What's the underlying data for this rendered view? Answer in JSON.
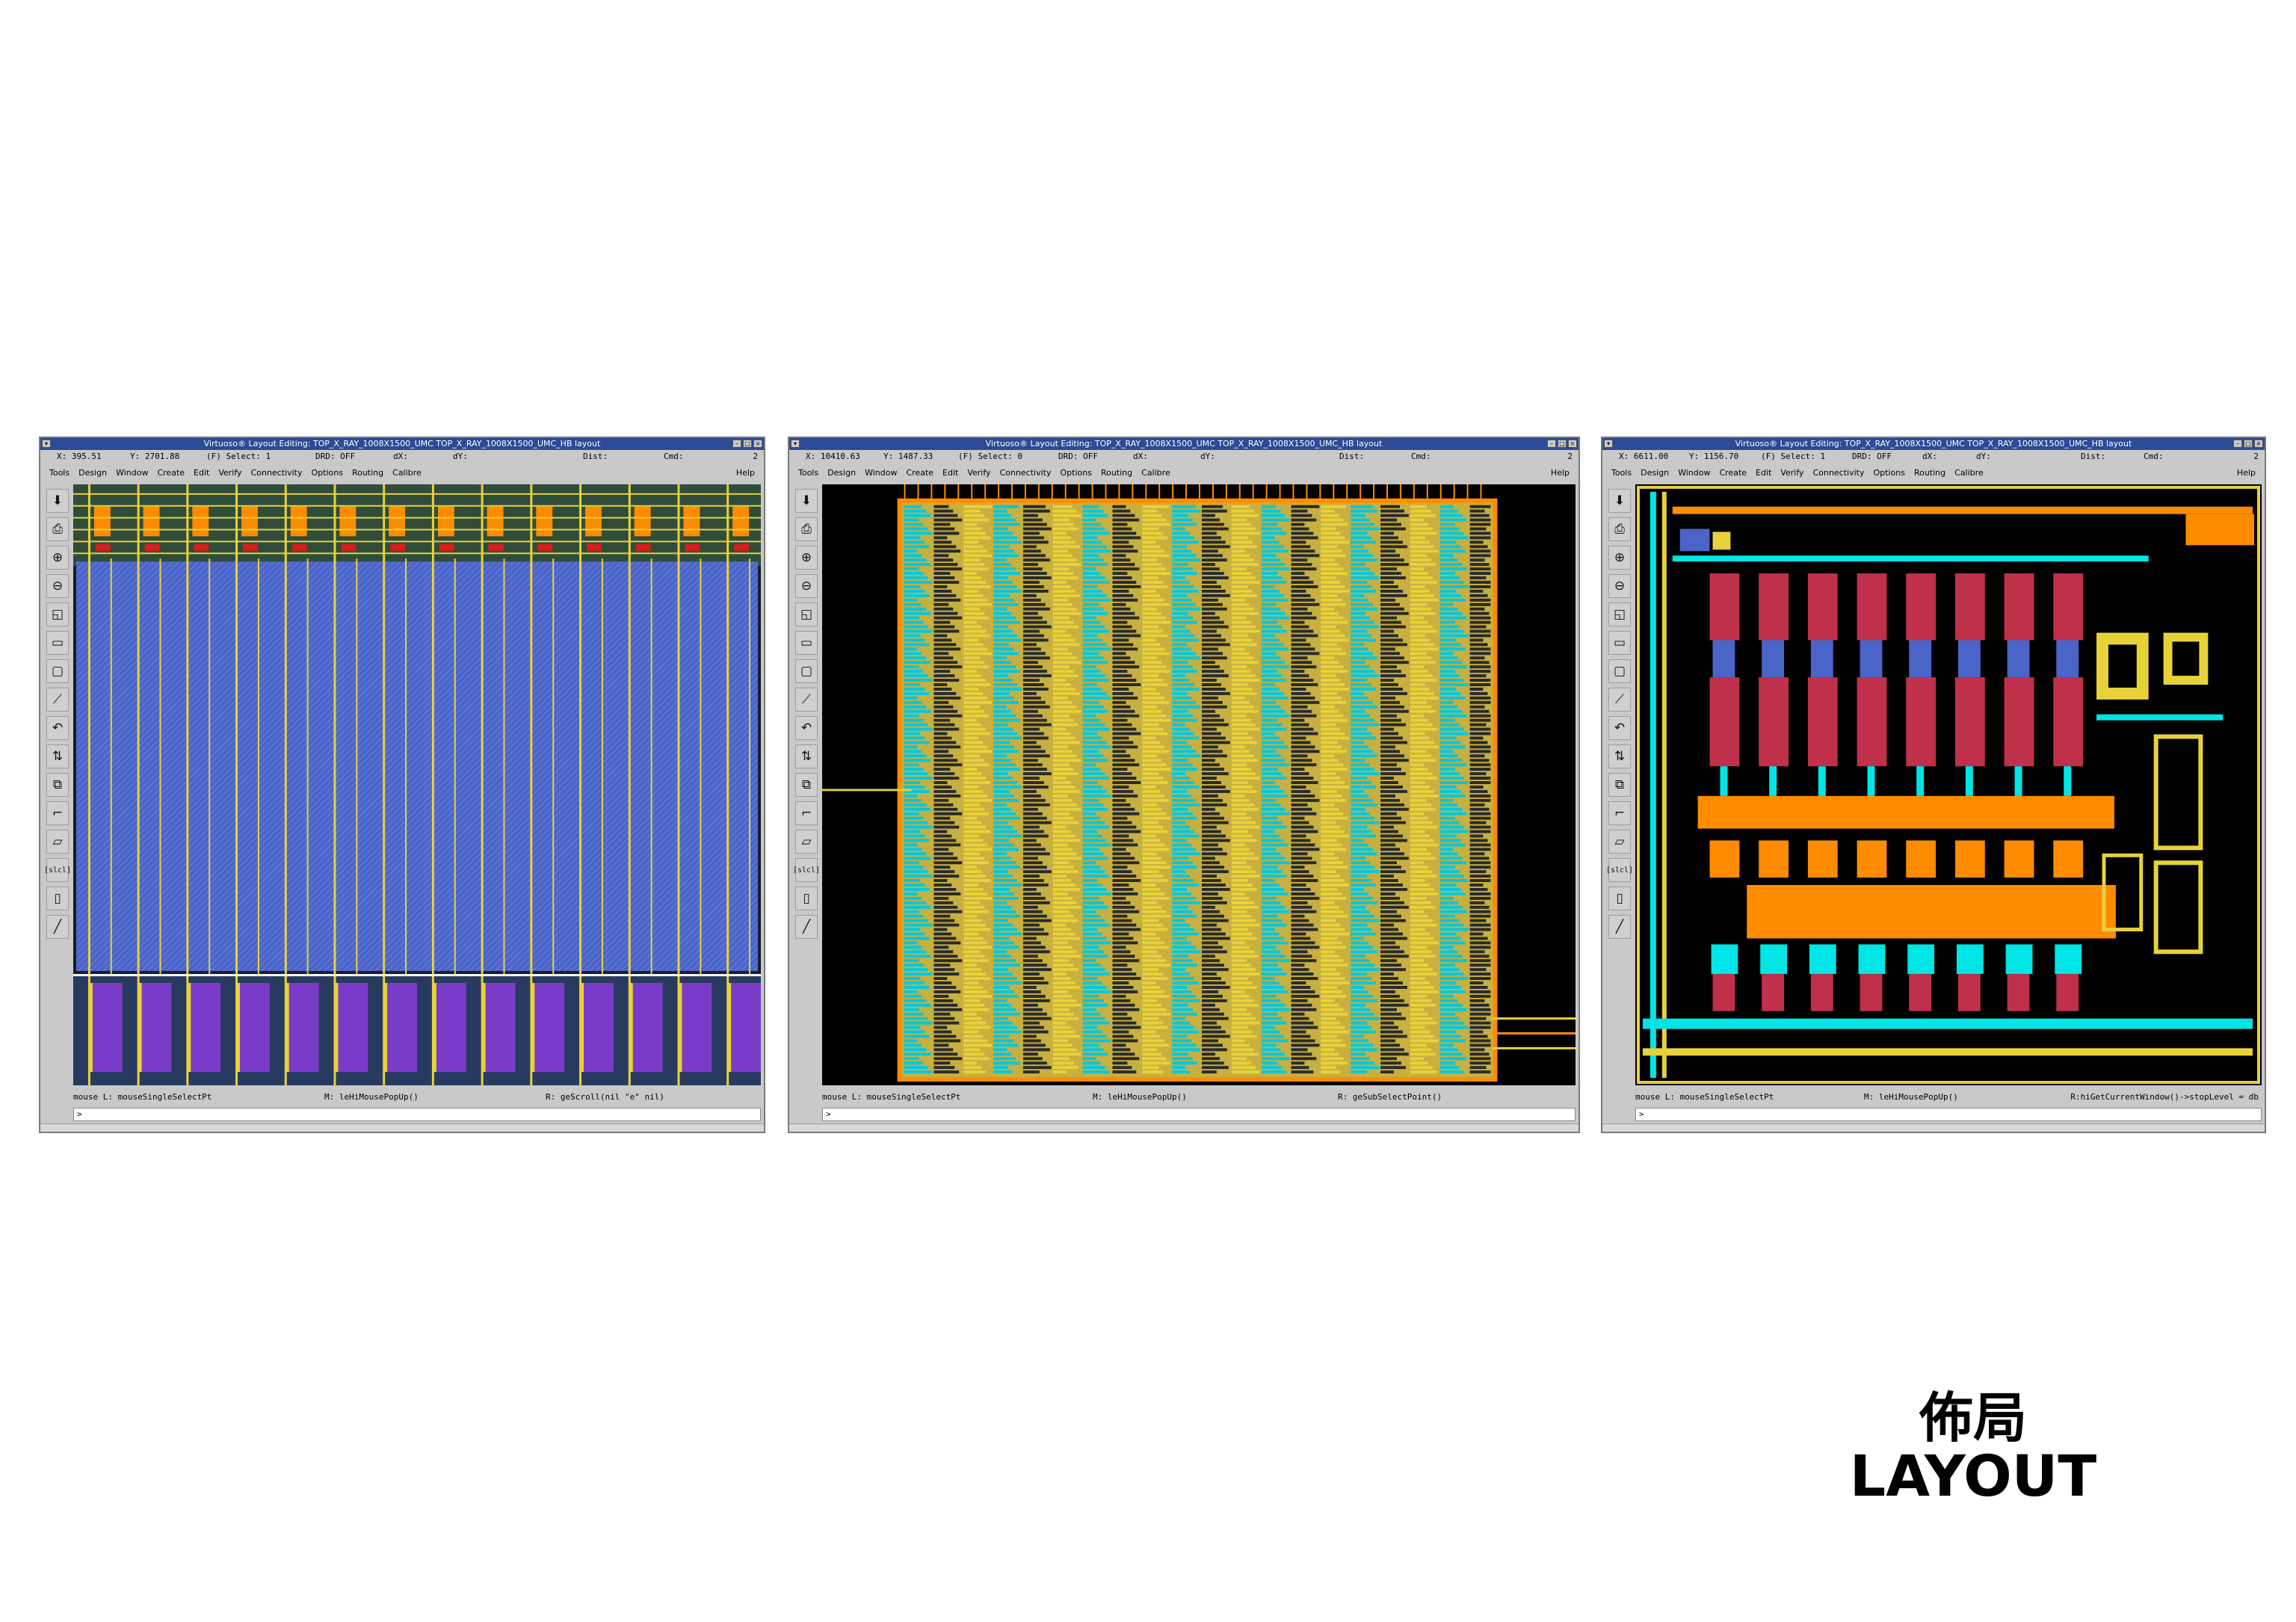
{
  "windows": [
    {
      "title": "Virtuoso® Layout Editing: TOP_X_RAY_1008X1500_UMC TOP_X_RAY_1008X1500_UMC_HB layout",
      "status": {
        "x": "X: 395.51",
        "y": "Y: 2701.88",
        "select": "(F) Select: 1",
        "drd": "DRD: OFF",
        "dx": "dX:",
        "dy": "dY:",
        "dist": "Dist:",
        "cmd": "Cmd:",
        "num": "2"
      },
      "mouse": {
        "l": "mouse L: mouseSingleSelectPt",
        "m": "M: leHiMousePopUp()",
        "r": "R: geScroll(nil \"e\" nil)"
      },
      "prompt": ">"
    },
    {
      "title": "Virtuoso® Layout Editing: TOP_X_RAY_1008X1500_UMC TOP_X_RAY_1008X1500_UMC_HB layout",
      "status": {
        "x": "X: 10410.63",
        "y": "Y: 1487.33",
        "select": "(F) Select: 0",
        "drd": "DRD: OFF",
        "dx": "dX:",
        "dy": "dY:",
        "dist": "Dist:",
        "cmd": "Cmd:",
        "num": "2"
      },
      "mouse": {
        "l": "mouse L: mouseSingleSelectPt",
        "m": "M: leHiMousePopUp()",
        "r": "R: geSubSelectPoint()"
      },
      "prompt": ">"
    },
    {
      "title": "Virtuoso® Layout Editing: TOP_X_RAY_1008X1500_UMC TOP_X_RAY_1008X1500_UMC_HB layout",
      "status": {
        "x": "X: 6611.00",
        "y": "Y: 1156.70",
        "select": "(F) Select: 1",
        "drd": "DRD: OFF",
        "dx": "dX:",
        "dy": "dY:",
        "dist": "Dist:",
        "cmd": "Cmd:",
        "num": "2"
      },
      "mouse": {
        "l": "mouse L: mouseSingleSelectPt",
        "m": "M: leHiMousePopUp()",
        "r": "R:hiGetCurrentWindow()->stopLevel = db"
      },
      "prompt": ">"
    }
  ],
  "menu": [
    "Tools",
    "Design",
    "Window",
    "Create",
    "Edit",
    "Verify",
    "Connectivity",
    "Options",
    "Routing",
    "Calibre"
  ],
  "help": "Help",
  "tools": [
    {
      "icon": "save-icon",
      "glyph": "⬇"
    },
    {
      "icon": "print-icon",
      "glyph": "⎙"
    },
    {
      "icon": "zoom-in-icon",
      "glyph": "⊕"
    },
    {
      "icon": "zoom-out-icon",
      "glyph": "⊖"
    },
    {
      "icon": "fit-view-icon",
      "glyph": "◱"
    },
    {
      "icon": "pan-icon",
      "glyph": "▭"
    },
    {
      "icon": "select-icon",
      "glyph": "▢"
    },
    {
      "icon": "ruler-icon",
      "glyph": "⟋"
    },
    {
      "icon": "undo-icon",
      "glyph": "↶"
    },
    {
      "icon": "stretch-icon",
      "glyph": "⇅"
    },
    {
      "icon": "hierarchy-icon",
      "glyph": "⧉"
    },
    {
      "icon": "path-icon",
      "glyph": "⌐"
    },
    {
      "icon": "polygon-icon",
      "glyph": "▱"
    },
    {
      "icon": "slice-icon",
      "glyph": "[slcl]"
    },
    {
      "icon": "label-icon",
      "glyph": "▯"
    },
    {
      "icon": "wire-icon",
      "glyph": "╱"
    }
  ],
  "caption": {
    "zh": "佈局",
    "en": "LAYOUT"
  },
  "colors": {
    "title_bar": "#2c4a96",
    "window_bg": "#c9c9c9",
    "canvas_bg": "#000000",
    "metal1": "#4a64c8",
    "metal2": "#e8d23a",
    "poly": "#ff8c00",
    "diff": "#00e5e5",
    "implant": "#c0304a"
  }
}
